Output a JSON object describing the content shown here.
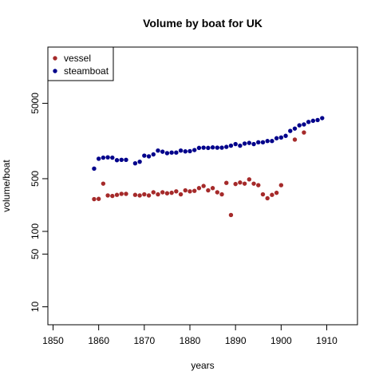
{
  "chart_data": {
    "type": "scatter",
    "title": "Volume by boat for UK",
    "xlabel": "years",
    "ylabel": "volume/boat",
    "xlim": [
      1850,
      1910
    ],
    "ylim": [
      10,
      5000
    ],
    "y_scale": "log",
    "grid": false,
    "legend_position": "top-left",
    "x_ticks": [
      1850,
      1860,
      1870,
      1880,
      1890,
      1900,
      1910
    ],
    "y_ticks": [
      10,
      50,
      100,
      500,
      5000
    ],
    "colors": {
      "vessel": "#a52a2a",
      "steamboat": "#00008b"
    },
    "series": [
      {
        "name": "vessel",
        "color": "#a52a2a",
        "points": [
          [
            1859,
            268
          ],
          [
            1860,
            270
          ],
          [
            1861,
            430
          ],
          [
            1862,
            300
          ],
          [
            1863,
            295
          ],
          [
            1864,
            305
          ],
          [
            1865,
            315
          ],
          [
            1866,
            315
          ],
          [
            1868,
            305
          ],
          [
            1869,
            300
          ],
          [
            1870,
            310
          ],
          [
            1871,
            300
          ],
          [
            1872,
            330
          ],
          [
            1873,
            310
          ],
          [
            1874,
            330
          ],
          [
            1875,
            320
          ],
          [
            1876,
            325
          ],
          [
            1877,
            340
          ],
          [
            1878,
            310
          ],
          [
            1879,
            350
          ],
          [
            1880,
            340
          ],
          [
            1881,
            345
          ],
          [
            1882,
            375
          ],
          [
            1883,
            400
          ],
          [
            1884,
            350
          ],
          [
            1885,
            375
          ],
          [
            1886,
            330
          ],
          [
            1887,
            310
          ],
          [
            1888,
            440
          ],
          [
            1889,
            165
          ],
          [
            1890,
            425
          ],
          [
            1891,
            445
          ],
          [
            1892,
            430
          ],
          [
            1893,
            490
          ],
          [
            1894,
            430
          ],
          [
            1895,
            410
          ],
          [
            1896,
            310
          ],
          [
            1897,
            275
          ],
          [
            1898,
            305
          ],
          [
            1899,
            325
          ],
          [
            1900,
            410
          ],
          [
            1903,
            1650
          ],
          [
            1905,
            2050
          ]
        ]
      },
      {
        "name": "steamboat",
        "color": "#00008b",
        "points": [
          [
            1859,
            680
          ],
          [
            1860,
            920
          ],
          [
            1861,
            950
          ],
          [
            1862,
            960
          ],
          [
            1863,
            950
          ],
          [
            1864,
            880
          ],
          [
            1865,
            890
          ],
          [
            1866,
            890
          ],
          [
            1868,
            800
          ],
          [
            1869,
            840
          ],
          [
            1870,
            1010
          ],
          [
            1871,
            990
          ],
          [
            1872,
            1050
          ],
          [
            1873,
            1180
          ],
          [
            1874,
            1140
          ],
          [
            1875,
            1090
          ],
          [
            1876,
            1110
          ],
          [
            1877,
            1110
          ],
          [
            1878,
            1180
          ],
          [
            1879,
            1150
          ],
          [
            1880,
            1160
          ],
          [
            1881,
            1200
          ],
          [
            1882,
            1280
          ],
          [
            1883,
            1290
          ],
          [
            1884,
            1280
          ],
          [
            1885,
            1300
          ],
          [
            1886,
            1290
          ],
          [
            1887,
            1290
          ],
          [
            1888,
            1320
          ],
          [
            1889,
            1370
          ],
          [
            1890,
            1440
          ],
          [
            1891,
            1370
          ],
          [
            1892,
            1460
          ],
          [
            1893,
            1490
          ],
          [
            1894,
            1440
          ],
          [
            1895,
            1520
          ],
          [
            1896,
            1520
          ],
          [
            1897,
            1580
          ],
          [
            1898,
            1580
          ],
          [
            1899,
            1720
          ],
          [
            1900,
            1760
          ],
          [
            1901,
            1850
          ],
          [
            1902,
            2150
          ],
          [
            1903,
            2310
          ],
          [
            1904,
            2550
          ],
          [
            1905,
            2620
          ],
          [
            1906,
            2830
          ],
          [
            1907,
            2930
          ],
          [
            1908,
            3000
          ],
          [
            1909,
            3180
          ]
        ]
      }
    ]
  }
}
